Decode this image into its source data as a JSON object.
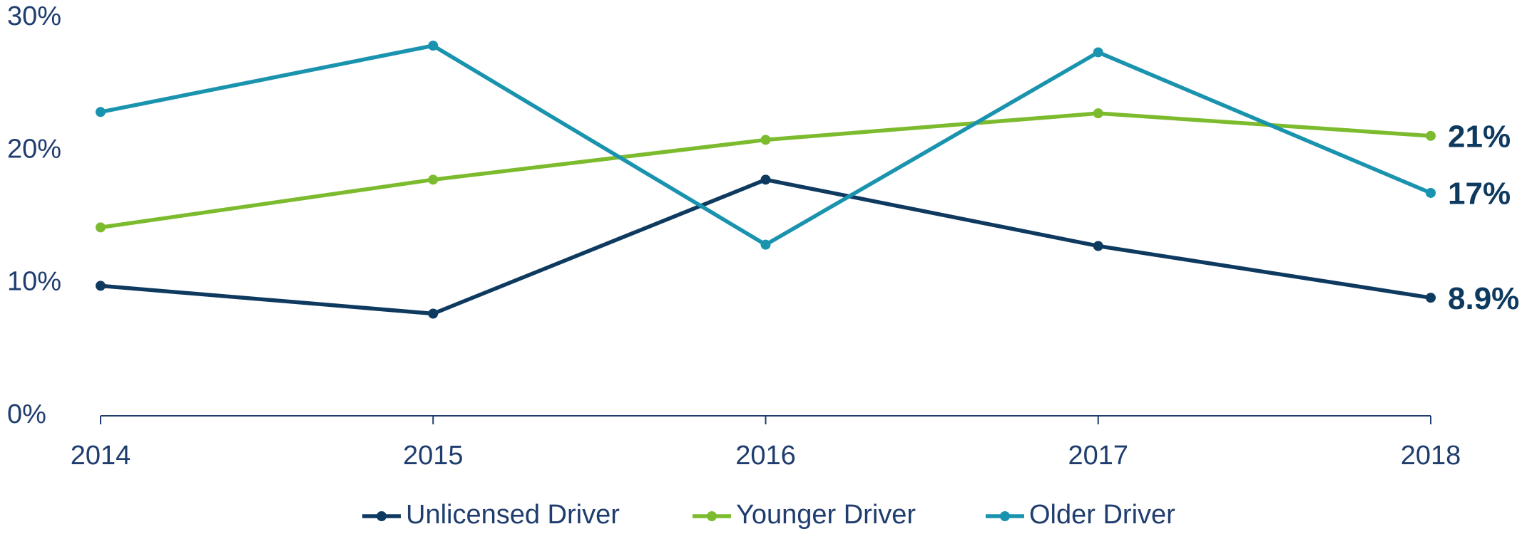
{
  "chart_data": {
    "type": "line",
    "categories": [
      "2014",
      "2015",
      "2016",
      "2017",
      "2018"
    ],
    "series": [
      {
        "name": "Unlicensed Driver",
        "color": "#0f3a60",
        "values": [
          9.8,
          7.7,
          17.8,
          12.8,
          8.9
        ],
        "value_labels": [
          null,
          null,
          null,
          null,
          "8.9%"
        ]
      },
      {
        "name": "Younger Driver",
        "color": "#7dbb2e",
        "values": [
          14.2,
          17.8,
          20.8,
          22.8,
          21.1
        ],
        "value_labels": [
          null,
          null,
          null,
          null,
          "21%"
        ]
      },
      {
        "name": "Older Driver",
        "color": "#1a93af",
        "values": [
          22.9,
          27.9,
          12.9,
          27.4,
          16.8
        ],
        "value_labels": [
          null,
          null,
          null,
          null,
          "17%"
        ]
      }
    ],
    "ylim": [
      0,
      30
    ],
    "yticks": [
      {
        "value": 0,
        "label": "0%"
      },
      {
        "value": 10,
        "label": "10%"
      },
      {
        "value": 20,
        "label": "20%"
      },
      {
        "value": 30,
        "label": "30%"
      }
    ],
    "grid": false,
    "legend": "bottom"
  }
}
